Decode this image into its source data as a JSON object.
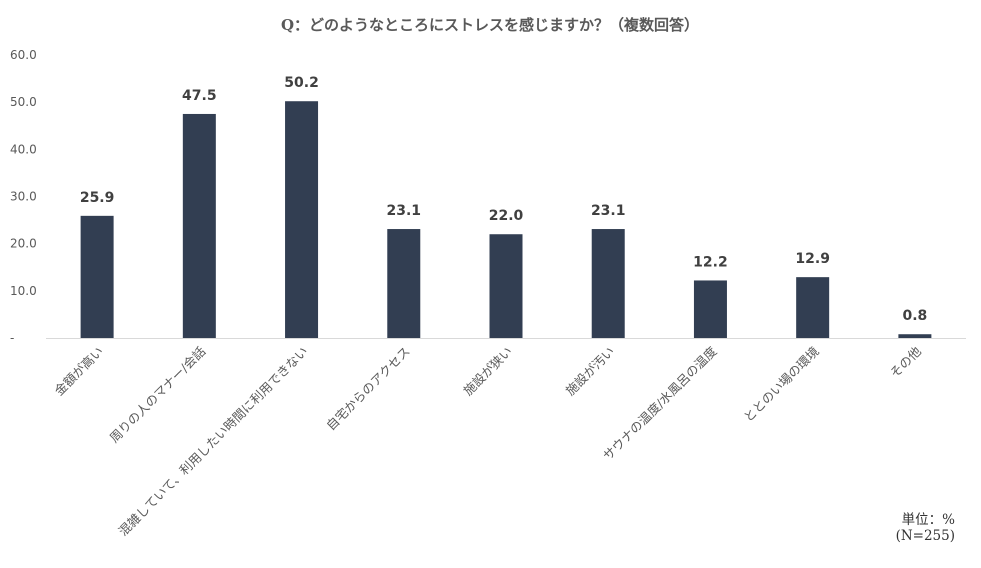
{
  "chart_data": {
    "type": "bar",
    "title": "Q：どのようなところにストレスを感じますか？（複数回答）",
    "categories": [
      "金額が高い",
      "周りの人のマナー/会話",
      "混雑していて、利用したい時間に利用できない",
      "自宅からのアクセス",
      "施設が狭い",
      "施設が汚い",
      "サウナの温度/水風呂の温度",
      "ととのい場の環境",
      "その他"
    ],
    "values": [
      25.9,
      47.5,
      50.2,
      23.1,
      22.0,
      23.1,
      12.2,
      12.9,
      0.8
    ],
    "value_labels": [
      "25.9",
      "47.5",
      "50.2",
      "23.1",
      "22.0",
      "23.1",
      "12.2",
      "12.9",
      "0.8"
    ],
    "ylim": [
      0,
      60
    ],
    "yticks": [
      0,
      10,
      20,
      30,
      40,
      50,
      60
    ],
    "ytick_labels": [
      "-",
      "10.0",
      "20.0",
      "30.0",
      "40.0",
      "50.0",
      "60.0"
    ],
    "bar_color": "#323e52",
    "grid": false,
    "legend": "none",
    "xlabel": "",
    "ylabel": ""
  },
  "notes": {
    "unit": "単位：%",
    "sample": "(N=255)"
  }
}
